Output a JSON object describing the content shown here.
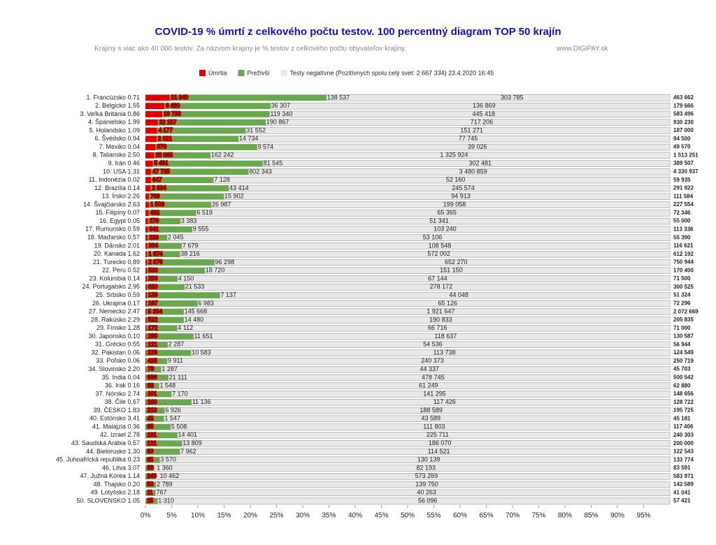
{
  "chart_data": {
    "type": "stacked_bar_100",
    "orientation": "horizontal",
    "title": "COVID-19 % úmrtí z celkového počtu testov.  100 percentný  diagram TOP 50 krajín",
    "subtitle": "Krajiny s viac ako 40 000 testov.  Za názvom krajiny je % testov  z celkového počtu obyvateľov krajiny.",
    "watermark": "www.DiGiPAY.sk",
    "categories": [
      "1. Francúzsko 0.71",
      "2. Belgicko 1.55",
      "3. Veľká Británia 0.86",
      "4. Španielsko 1.99",
      "5. Holandsko 1.09",
      "6. Švédsko 0.94",
      "7. Mexiko 0.04",
      "8. Taliansko 2.50",
      "9. Irán 0.46",
      "10. USA 1.31",
      "11. Indonézia 0.02",
      "12. Brazília 0.14",
      "13. Írsko 2.26",
      "14. Švajčiarsko 2.63",
      "15. Filipíny 0.07",
      "16. Egypt 0.05",
      "17. Rumunsko 0.59",
      "18. Maďarsko 0.57",
      "19. Dánsko 2.01",
      "20. Kanada 1.62",
      "21. Turecko 0.89",
      "22. Peru 0.52",
      "23. Kolumbia 0.14",
      "24. Portugalsko 2.95",
      "25. Srbsko 0.59",
      "26. Ukrajina 0.17",
      "27. Nemecko 2.47",
      "28. Rakúsko 2.29",
      "29. Fínsko 1.28",
      "30. Japonsko 0.10",
      "31. Grécko 0.55",
      "32. Pakistan 0.06",
      "33. Poľsko 0.06",
      "34. Slovinsko 2.20",
      "35. India 0.04",
      "36. Irak 0.16",
      "37. Nórsko 2.74",
      "38. Čile 0.67",
      "39. ČESKO 1.83",
      "40. Estónsko 3.41",
      "41. Malajzia 0.36",
      "42. Izrael 2.78",
      "43. Saudská Arábia 0.57",
      "44. Bielorusko 1.30",
      "45. Juhoafrická republika 0.23",
      "46. Litva 3.07",
      "47. Južná Kórea 1.14",
      "48. Thajsko 0.20",
      "49. Lotyšsko 2.18",
      "50. SLOVENSKO 1.05"
    ],
    "series": [
      {
        "name": "Úmrtia",
        "color": "#e00000",
        "label_color": "#ffffff",
        "values": [
          21340,
          6490,
          18738,
          22157,
          4177,
          2021,
          970,
          25085,
          5481,
          47735,
          647,
          2934,
          769,
          1509,
          462,
          276,
          541,
          239,
          394,
          1974,
          2376,
          530,
          206,
          820,
          139,
          187,
          5354,
          522,
          172,
          299,
          121,
          228,
          435,
          79,
          686,
          83,
          191,
          160,
          210,
          45,
          95,
          191,
          121,
          60,
          65,
          38,
          240,
          50,
          11,
          15
        ],
        "value_labels": [
          "21 340",
          "6 490",
          "18 738",
          "22 157",
          "4 177",
          "2 021",
          "970",
          "25 085",
          "5 481",
          "47 735",
          "647",
          "2 934",
          "769",
          "1 509",
          "462",
          "276",
          "541",
          "239",
          "394",
          "1 974",
          "2 376",
          "530",
          "206",
          "820",
          "139",
          "187",
          "5 354",
          "522",
          "172",
          "299",
          "121",
          "228",
          "435",
          "79",
          "686",
          "83",
          "191",
          "160",
          "210",
          "45",
          "95",
          "191",
          "121",
          "60",
          "65",
          "38",
          "240",
          "50",
          "11",
          "15"
        ]
      },
      {
        "name": "Preživší",
        "color": "#6aa84f",
        "label_color": "#3f9a2a",
        "values": [
          138537,
          36307,
          119340,
          190867,
          31552,
          14734,
          9574,
          162242,
          81545,
          802343,
          7128,
          43414,
          15902,
          26987,
          6519,
          3383,
          9555,
          2045,
          7679,
          38216,
          96298,
          18720,
          4150,
          21533,
          7137,
          6983,
          145668,
          14480,
          4112,
          11651,
          2287,
          10583,
          9911,
          1287,
          21111,
          1548,
          7170,
          11136,
          6926,
          1547,
          5508,
          14401,
          13809,
          7962,
          3570,
          1360,
          10462,
          2789,
          767,
          1310
        ],
        "value_labels": [
          "138 537",
          "36 307",
          "119 340",
          "190 867",
          "31 552",
          "14 734",
          "9 574",
          "162 242",
          "81 545",
          "802 343",
          "7 128",
          "43 414",
          "15 902",
          "26 987",
          "6 519",
          "3 383",
          "9 555",
          "2 045",
          "7 679",
          "38 216",
          "96 298",
          "18 720",
          "4 150",
          "21 533",
          "7 137",
          "6 983",
          "145 668",
          "14 480",
          "4 112",
          "11 651",
          "2 287",
          "10 583",
          "9 911",
          "1 287",
          "21 111",
          "1 548",
          "7 170",
          "11 136",
          "6 926",
          "1 547",
          "5 508",
          "14 401",
          "13 809",
          "7 962",
          "3 570",
          "1 360",
          "10 462",
          "2 789",
          "767",
          "1 310"
        ]
      },
      {
        "name": "Testy negatívne (Pozitívnych spolu celý svet: 2 667 334) 23.4.2020 16:45",
        "color": "#e8e8e8",
        "label_color": "#222222",
        "values": [
          303785,
          136869,
          445418,
          717206,
          151271,
          77745,
          39026,
          1325924,
          302481,
          3480859,
          52160,
          245574,
          94913,
          199058,
          65365,
          51341,
          103240,
          53106,
          108548,
          572002,
          652270,
          151150,
          67144,
          278172,
          44048,
          65126,
          1921647,
          190833,
          66716,
          118637,
          54536,
          113738,
          240373,
          44337,
          478745,
          61249,
          141295,
          117426,
          188589,
          43589,
          111803,
          225711,
          186070,
          114521,
          130139,
          82193,
          573269,
          139750,
          40263,
          56096
        ],
        "value_labels": [
          "303 785",
          "136 869",
          "445 418",
          "717 206",
          "151 271",
          "77 745",
          "39 026",
          "1 325 924",
          "302 481",
          "3 480 859",
          "52 160",
          "245 574",
          "94 913",
          "199 058",
          "65 365",
          "51 341",
          "103 240",
          "53 106",
          "108 548",
          "572 002",
          "652 270",
          "151 150",
          "67 144",
          "278 172",
          "44 048",
          "65 126",
          "1 921 647",
          "190 833",
          "66 716",
          "118 637",
          "54 536",
          "113 738",
          "240 373",
          "44 337",
          "478 745",
          "61 249",
          "141 295",
          "117 426",
          "188 589",
          "43 589",
          "111 803",
          "225 711",
          "186 070",
          "114 521",
          "130 139",
          "82 193",
          "573 269",
          "139 750",
          "40 263",
          "56 096"
        ]
      }
    ],
    "totals": [
      463662,
      179666,
      583496,
      930230,
      187000,
      94500,
      49570,
      1513251,
      389507,
      4330937,
      59935,
      291922,
      111584,
      227554,
      72346,
      55000,
      113336,
      55390,
      116621,
      612192,
      750944,
      170400,
      71500,
      300525,
      51324,
      72296,
      2072669,
      205835,
      71000,
      130587,
      56944,
      124549,
      250719,
      45703,
      500542,
      62880,
      148656,
      128722,
      195725,
      45181,
      117406,
      240303,
      200000,
      122543,
      133774,
      83591,
      583971,
      142589,
      41041,
      57421
    ],
    "total_labels": [
      "463 662",
      "179 666",
      "583 496",
      "930 230",
      "187 000",
      "94 500",
      "49 570",
      "1 513 251",
      "389 507",
      "4 330 937",
      "59 935",
      "291 922",
      "111 584",
      "227 554",
      "72 346",
      "55 000",
      "113 336",
      "55 390",
      "116 621",
      "612 192",
      "750 944",
      "170 400",
      "71 500",
      "300 525",
      "51 324",
      "72 296",
      "2 072 669",
      "205 835",
      "71 000",
      "130 587",
      "56 944",
      "124 549",
      "250 719",
      "45 703",
      "500 542",
      "62 880",
      "148 656",
      "128 722",
      "195 725",
      "45 181",
      "117 406",
      "240 303",
      "200 000",
      "122 543",
      "133 774",
      "83 591",
      "583 971",
      "142 589",
      "41 041",
      "57 421"
    ],
    "total_color": "#9c2a6a",
    "xlim": [
      0,
      100
    ],
    "xticks": [
      {
        "value": 0,
        "label": "0%"
      },
      {
        "value": 5,
        "label": "5%"
      },
      {
        "value": 10,
        "label": "10%"
      },
      {
        "value": 15,
        "label": "15%"
      },
      {
        "value": 20,
        "label": "20%"
      },
      {
        "value": 25,
        "label": "25%"
      },
      {
        "value": 30,
        "label": "30%"
      },
      {
        "value": 35,
        "label": "35%"
      },
      {
        "value": 40,
        "label": "40%"
      },
      {
        "value": 45,
        "label": "45%"
      },
      {
        "value": 50,
        "label": "50%"
      },
      {
        "value": 55,
        "label": "55%"
      },
      {
        "value": 60,
        "label": "60%"
      },
      {
        "value": 65,
        "label": "65%"
      },
      {
        "value": 70,
        "label": "70%"
      },
      {
        "value": 75,
        "label": "75%"
      },
      {
        "value": 80,
        "label": "80%"
      },
      {
        "value": 85,
        "label": "85%"
      },
      {
        "value": 90,
        "label": "90%"
      },
      {
        "value": 95,
        "label": "95%"
      }
    ],
    "legend": "top"
  }
}
